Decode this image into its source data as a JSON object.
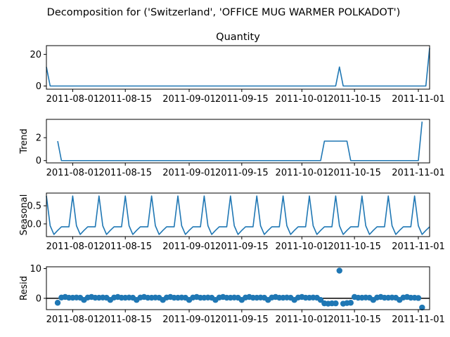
{
  "chart_data": {
    "type": "line",
    "title": "Decomposition for ('Switzerland', 'OFFICE MUG WARMER POLKADOT')",
    "x_start": "2011-07-25",
    "x_end": "2011-11-04",
    "x_ticks": [
      "2011-08-01",
      "2011-08-15",
      "2011-09-01",
      "2011-09-15",
      "2011-10-01",
      "2011-10-15",
      "2011-11-01"
    ],
    "line_color": "#1f77b4",
    "panels": [
      {
        "id": "observed",
        "type": "line",
        "title": "Quantity",
        "ylabel": "",
        "ylim": [
          -2,
          25.5
        ],
        "yticks": [
          0,
          20
        ],
        "points": [
          [
            "2011-07-25",
            12
          ],
          [
            "2011-07-26",
            0
          ],
          [
            "2011-10-10",
            0
          ],
          [
            "2011-10-11",
            12
          ],
          [
            "2011-10-12",
            0
          ],
          [
            "2011-11-03",
            0
          ],
          [
            "2011-11-04",
            24
          ]
        ]
      },
      {
        "id": "trend",
        "type": "line",
        "title": "",
        "ylabel": "Trend",
        "ylim": [
          -0.2,
          3.6
        ],
        "yticks": [
          0,
          2
        ],
        "points": [
          [
            "2011-07-28",
            1.7
          ],
          [
            "2011-07-29",
            0
          ],
          [
            "2011-10-06",
            0
          ],
          [
            "2011-10-07",
            1.7
          ],
          [
            "2011-10-13",
            1.7
          ],
          [
            "2011-10-14",
            0
          ],
          [
            "2011-11-01",
            0
          ],
          [
            "2011-11-02",
            3.4
          ]
        ]
      },
      {
        "id": "seasonal",
        "type": "line",
        "title": "",
        "ylabel": "Seasonal",
        "ylim": [
          -0.35,
          0.85
        ],
        "yticks": [
          0.0,
          0.5
        ],
        "period_days": 7,
        "anchor": "2011-07-25",
        "pattern": [
          0.77,
          -0.05,
          -0.29,
          -0.18,
          -0.08,
          -0.08,
          -0.08
        ]
      },
      {
        "id": "resid",
        "type": "scatter",
        "title": "",
        "ylabel": "Resid",
        "ylim": [
          -3.8,
          10.6
        ],
        "yticks": [
          0,
          10
        ],
        "zero_line": true,
        "base_pattern": [
          -0.55,
          0.25,
          0.45,
          0.2,
          0.2,
          0.25,
          0.2
        ],
        "start": "2011-07-28",
        "end": "2011-11-01",
        "overrides": [
          [
            "2011-07-28",
            -1.5
          ],
          [
            "2011-10-07",
            -1.7
          ],
          [
            "2011-10-08",
            -1.8
          ],
          [
            "2011-10-09",
            -1.7
          ],
          [
            "2011-10-10",
            -1.7
          ],
          [
            "2011-10-11",
            9.3
          ],
          [
            "2011-10-12",
            -1.8
          ],
          [
            "2011-10-13",
            -1.6
          ],
          [
            "2011-10-14",
            -1.5
          ],
          [
            "2011-11-01",
            0.1
          ],
          [
            "2011-11-02",
            -3.1
          ]
        ]
      }
    ]
  }
}
